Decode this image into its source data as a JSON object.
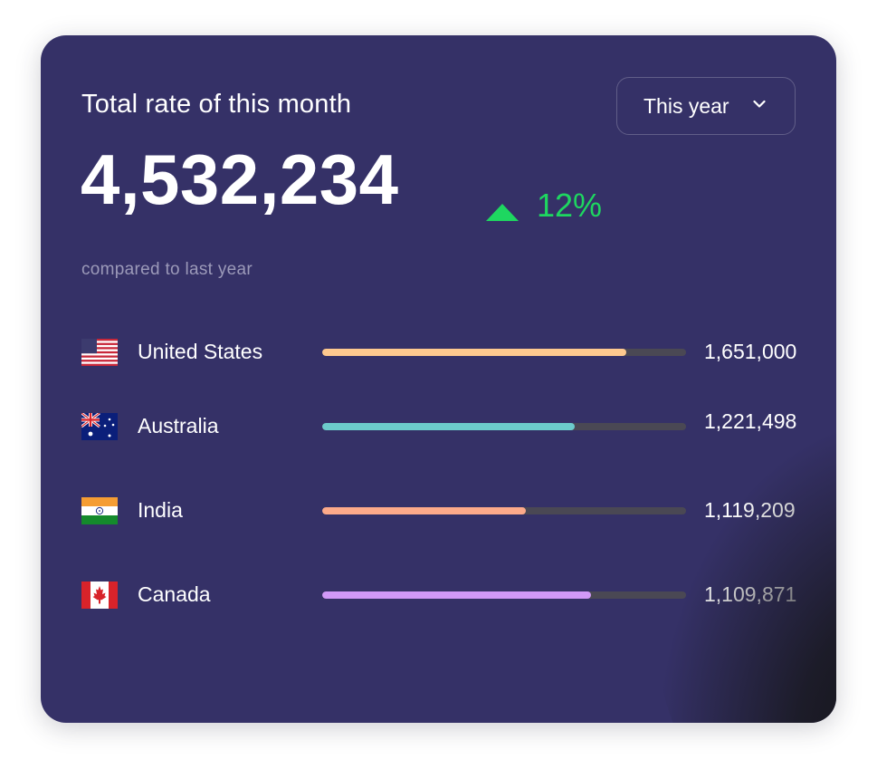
{
  "card": {
    "title": "Total rate of this month",
    "dropdown": {
      "selected": "This year",
      "icon": "chevron-down-icon"
    },
    "total": "4,532,234",
    "trend": {
      "icon": "triangle-up-icon",
      "value": "12%",
      "color": "#1ed760"
    },
    "comparison": "compared to last year"
  },
  "countries": [
    {
      "name": "United States",
      "value": "1,651,000",
      "progress": 0.835,
      "color": "#fec98f",
      "flag": "us-flag-icon"
    },
    {
      "name": "Australia",
      "value": "1,221,498",
      "progress": 0.695,
      "color": "#6ccbcb",
      "flag": "australia-flag-icon"
    },
    {
      "name": "India",
      "value": "1,119,209",
      "progress": 0.56,
      "color": "#fdaa8a",
      "flag": "india-flag-icon"
    },
    {
      "name": "Canada",
      "value": "1,109,871",
      "progress": 0.74,
      "color": "#d199f8",
      "flag": "canada-flag-icon"
    }
  ],
  "colors": {
    "card_background": "#353167",
    "track": "#4a4854",
    "accent_green": "#1ed760"
  }
}
